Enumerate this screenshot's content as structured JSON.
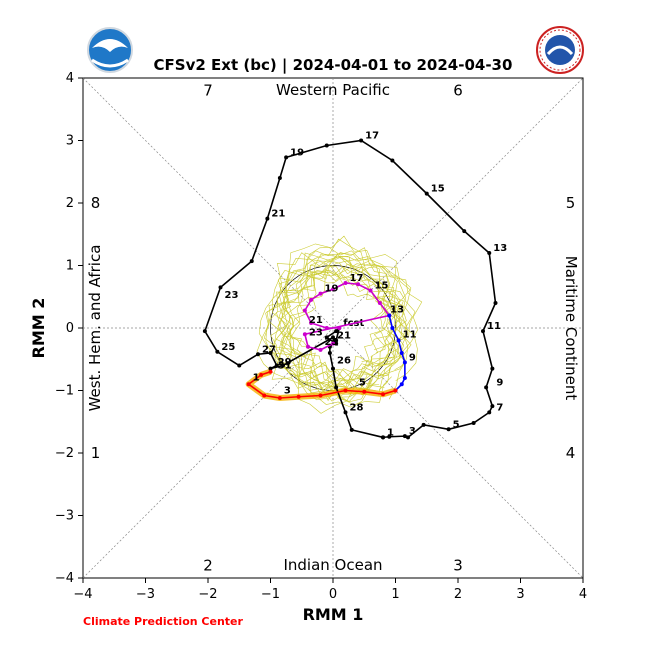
{
  "chart_data": {
    "type": "line",
    "title": "CFSv2 Ext (bc) | 2024-04-01 to 2024-04-30",
    "xlabel": "RMM 1",
    "ylabel": "RMM 2",
    "xlim": [
      -4,
      4
    ],
    "ylim": [
      -4,
      4
    ],
    "ticks": [
      "−4",
      "−3",
      "−2",
      "−1",
      "0",
      "1",
      "2",
      "3",
      "4"
    ],
    "regions": {
      "top": "Western Pacific",
      "bottom": "Indian Ocean",
      "left": "West. Hem. and Africa",
      "right": "Maritime Continent"
    },
    "phases": [
      {
        "label": "1",
        "x": -3.8,
        "y": -2.0
      },
      {
        "label": "2",
        "x": -2.0,
        "y": -3.8
      },
      {
        "label": "3",
        "x": 2.0,
        "y": -3.8
      },
      {
        "label": "4",
        "x": 3.8,
        "y": -2.0
      },
      {
        "label": "5",
        "x": 3.8,
        "y": 2.0
      },
      {
        "label": "6",
        "x": 2.0,
        "y": 3.8
      },
      {
        "label": "7",
        "x": -2.0,
        "y": 3.8
      },
      {
        "label": "8",
        "x": -3.8,
        "y": 2.0
      }
    ],
    "credit": "Climate Prediction Center",
    "grid": "diagonal dashed phase lines, dotted axes through origin",
    "unit_circle": true,
    "ensemble_color": "#cccc33",
    "series": [
      {
        "color": "#000000",
        "points": [
          [
            0.8,
            -1.75
          ],
          [
            0.9,
            -1.74
          ],
          [
            1.15,
            -1.73
          ],
          [
            1.2,
            -1.75
          ],
          [
            1.45,
            -1.55
          ],
          [
            1.85,
            -1.62
          ],
          [
            2.25,
            -1.52
          ],
          [
            2.5,
            -1.35
          ],
          [
            2.55,
            -1.25
          ],
          [
            2.45,
            -0.95
          ],
          [
            2.55,
            -0.65
          ],
          [
            2.4,
            -0.05
          ],
          [
            2.6,
            0.4
          ],
          [
            2.5,
            1.2
          ],
          [
            2.1,
            1.55
          ],
          [
            1.5,
            2.15
          ],
          [
            0.95,
            2.68
          ],
          [
            0.45,
            3.0
          ],
          [
            -0.1,
            2.92
          ],
          [
            -0.75,
            2.73
          ],
          [
            -0.85,
            2.4
          ],
          [
            -1.05,
            1.75
          ],
          [
            -1.3,
            1.07
          ],
          [
            -1.8,
            0.65
          ],
          [
            -2.05,
            -0.05
          ],
          [
            -1.85,
            -0.38
          ],
          [
            -1.5,
            -0.6
          ],
          [
            -1.2,
            -0.42
          ],
          [
            -1.0,
            -0.4
          ],
          [
            -0.9,
            -0.6
          ],
          [
            -1.0,
            -0.65
          ],
          [
            -0.8,
            -0.6
          ],
          [
            0.0,
            -0.15
          ],
          [
            0.05,
            -0.25
          ],
          [
            -0.1,
            -0.15
          ],
          [
            0.05,
            -0.05
          ],
          [
            0.1,
            0.0
          ],
          [
            0.05,
            -0.2
          ],
          [
            -0.05,
            -0.3
          ],
          [
            -0.05,
            -0.4
          ],
          [
            0.0,
            -0.65
          ],
          [
            0.05,
            -0.95
          ],
          [
            0.2,
            -1.35
          ],
          [
            0.3,
            -1.63
          ],
          [
            0.8,
            -1.75
          ]
        ],
        "labels": [
          {
            "text": "1",
            "x": 0.8,
            "y": -1.75
          },
          {
            "text": "3",
            "x": 1.15,
            "y": -1.73
          },
          {
            "text": "5",
            "x": 1.85,
            "y": -1.62
          },
          {
            "text": "7",
            "x": 2.55,
            "y": -1.35
          },
          {
            "text": "9",
            "x": 2.55,
            "y": -0.95
          },
          {
            "text": "11",
            "x": 2.4,
            "y": -0.05
          },
          {
            "text": "13",
            "x": 2.5,
            "y": 1.2
          },
          {
            "text": "15",
            "x": 1.5,
            "y": 2.15
          },
          {
            "text": "17",
            "x": 0.45,
            "y": 3.0
          },
          {
            "text": "19",
            "x": -0.75,
            "y": 2.73
          },
          {
            "text": "21",
            "x": -1.05,
            "y": 1.75
          },
          {
            "text": "23",
            "x": -1.8,
            "y": 0.45
          },
          {
            "text": "25",
            "x": -1.85,
            "y": -0.38
          },
          {
            "text": "27",
            "x": -1.2,
            "y": -0.42
          },
          {
            "text": "29",
            "x": -0.95,
            "y": -0.62
          },
          {
            "text": "31",
            "x": -0.95,
            "y": -0.68
          },
          {
            "text": "26",
            "x": 0.0,
            "y": -0.6
          },
          {
            "text": "28",
            "x": 0.2,
            "y": -1.35
          },
          {
            "text": "fcst",
            "x": 0.1,
            "y": 0.0
          }
        ]
      },
      {
        "color": "#cc00cc",
        "points": [
          [
            0.1,
            0.0
          ],
          [
            -0.1,
            0.0
          ],
          [
            -0.35,
            0.08
          ],
          [
            -0.45,
            0.28
          ],
          [
            -0.35,
            0.45
          ],
          [
            -0.2,
            0.55
          ],
          [
            0.0,
            0.62
          ],
          [
            0.2,
            0.72
          ],
          [
            0.4,
            0.7
          ],
          [
            0.6,
            0.6
          ],
          [
            0.75,
            0.4
          ],
          [
            0.9,
            0.2
          ],
          [
            -0.45,
            -0.1
          ],
          [
            -0.4,
            -0.3
          ],
          [
            -0.2,
            -0.35
          ],
          [
            0.0,
            -0.25
          ]
        ],
        "labels": [
          {
            "text": "17",
            "x": 0.2,
            "y": 0.72
          },
          {
            "text": "19",
            "x": -0.2,
            "y": 0.55
          },
          {
            "text": "21",
            "x": -0.45,
            "y": 0.05
          },
          {
            "text": "23",
            "x": -0.45,
            "y": -0.15
          },
          {
            "text": "25",
            "x": -0.2,
            "y": -0.3
          },
          {
            "text": "15",
            "x": 0.6,
            "y": 0.6
          },
          {
            "text": "13",
            "x": 0.85,
            "y": 0.22
          },
          {
            "text": "21",
            "x": 0.0,
            "y": -0.2
          }
        ]
      },
      {
        "color": "#0000ff",
        "points": [
          [
            0.9,
            0.2
          ],
          [
            0.95,
            0.0
          ],
          [
            1.05,
            -0.2
          ],
          [
            1.1,
            -0.4
          ],
          [
            1.15,
            -0.55
          ],
          [
            1.15,
            -0.8
          ],
          [
            1.1,
            -0.9
          ],
          [
            1.0,
            -1.0
          ]
        ],
        "labels": [
          {
            "text": "11",
            "x": 1.05,
            "y": -0.18
          },
          {
            "text": "9",
            "x": 1.15,
            "y": -0.55
          }
        ]
      },
      {
        "color": "#ff0000",
        "points": [
          [
            1.0,
            -1.0
          ],
          [
            0.8,
            -1.06
          ],
          [
            0.5,
            -1.02
          ],
          [
            0.2,
            -1.0
          ],
          [
            -0.2,
            -1.08
          ],
          [
            -0.55,
            -1.1
          ],
          [
            -0.85,
            -1.12
          ],
          [
            -1.1,
            -1.08
          ],
          [
            -1.35,
            -0.9
          ],
          [
            -1.15,
            -0.75
          ],
          [
            -1.0,
            -0.7
          ]
        ],
        "labels": [
          {
            "text": "5",
            "x": 0.35,
            "y": -0.95
          },
          {
            "text": "3",
            "x": -0.85,
            "y": -1.08
          },
          {
            "text": "1",
            "x": -1.35,
            "y": -0.87
          }
        ]
      }
    ]
  }
}
